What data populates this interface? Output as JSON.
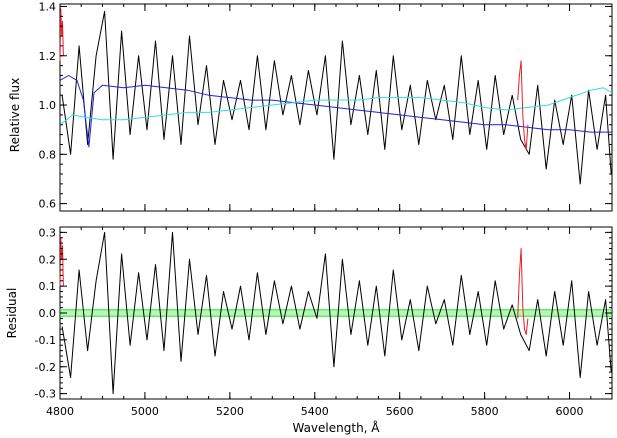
{
  "chart_data": [
    {
      "type": "line",
      "panel": "top",
      "ylabel": "Relative flux",
      "xlabel": "",
      "xlim": [
        4800,
        6100
      ],
      "ylim": [
        0.57,
        1.41
      ],
      "x_ticks": [
        "4800",
        "5000",
        "5200",
        "5400",
        "5600",
        "5800",
        "6000"
      ],
      "y_ticks": [
        "0.6",
        "0.8",
        "1.0",
        "1.2",
        "1.4"
      ],
      "grid": false,
      "legend": "none",
      "series": [
        {
          "color": "#000000",
          "x": [
            4805,
            4825,
            4845,
            4865,
            4885,
            4905,
            4925,
            4945,
            4965,
            4985,
            5005,
            5025,
            5045,
            5065,
            5085,
            5105,
            5125,
            5145,
            5165,
            5185,
            5205,
            5225,
            5245,
            5265,
            5285,
            5305,
            5325,
            5345,
            5365,
            5385,
            5405,
            5425,
            5445,
            5465,
            5485,
            5505,
            5525,
            5545,
            5565,
            5585,
            5605,
            5625,
            5645,
            5665,
            5685,
            5705,
            5725,
            5745,
            5765,
            5785,
            5805,
            5825,
            5845,
            5865,
            5885,
            5905,
            5925,
            5945,
            5965,
            5985,
            6005,
            6025,
            6045,
            6065,
            6085,
            6098
          ],
          "y": [
            1.04,
            0.8,
            1.24,
            0.84,
            1.2,
            1.38,
            0.78,
            1.3,
            0.88,
            1.2,
            0.9,
            1.26,
            0.86,
            1.2,
            0.84,
            1.28,
            0.92,
            1.16,
            0.84,
            1.1,
            0.94,
            1.1,
            0.9,
            1.2,
            0.9,
            1.18,
            0.96,
            1.12,
            0.92,
            1.14,
            0.96,
            1.2,
            0.78,
            1.26,
            0.92,
            1.12,
            0.88,
            1.14,
            0.82,
            1.2,
            0.9,
            1.08,
            0.84,
            1.1,
            0.94,
            1.08,
            0.86,
            1.2,
            0.88,
            1.1,
            0.82,
            1.12,
            0.88,
            1.04,
            0.86,
            0.8,
            1.08,
            0.74,
            1.02,
            0.84,
            1.04,
            0.68,
            1.06,
            0.82,
            1.04,
            0.72
          ]
        },
        {
          "color": "#1f22d6",
          "x": [
            4800,
            4820,
            4840,
            4855,
            4868,
            4880,
            4900,
            4950,
            5000,
            5050,
            5100,
            5150,
            5200,
            5250,
            5300,
            5350,
            5400,
            5450,
            5500,
            5550,
            5600,
            5650,
            5700,
            5750,
            5800,
            5850,
            5900,
            5950,
            6000,
            6050,
            6100
          ],
          "y": [
            1.1,
            1.12,
            1.1,
            1.02,
            0.83,
            1.05,
            1.08,
            1.07,
            1.08,
            1.07,
            1.06,
            1.04,
            1.03,
            1.02,
            1.02,
            1.01,
            1.0,
            0.99,
            0.98,
            0.97,
            0.96,
            0.95,
            0.94,
            0.93,
            0.92,
            0.92,
            0.91,
            0.9,
            0.9,
            0.89,
            0.89
          ]
        },
        {
          "color": "#33dde6",
          "x": [
            4800,
            4830,
            4860,
            4900,
            4950,
            5000,
            5050,
            5100,
            5150,
            5200,
            5250,
            5300,
            5350,
            5400,
            5450,
            5500,
            5550,
            5600,
            5650,
            5700,
            5750,
            5800,
            5850,
            5900,
            5950,
            6000,
            6050,
            6080,
            6100
          ],
          "y": [
            0.92,
            0.96,
            0.95,
            0.94,
            0.94,
            0.95,
            0.96,
            0.97,
            0.97,
            0.98,
            0.99,
            1.0,
            1.01,
            1.02,
            1.02,
            1.02,
            1.03,
            1.03,
            1.03,
            1.02,
            1.01,
            0.99,
            0.98,
            0.99,
            1.0,
            1.03,
            1.06,
            1.07,
            1.05
          ]
        },
        {
          "color": "#e8202a",
          "x": [
            4800,
            4802,
            4804,
            4806,
            4808
          ],
          "y": [
            1.18,
            1.39,
            1.28,
            1.34,
            1.2
          ]
        },
        {
          "color": "#e8202a",
          "x": [
            5878,
            5882,
            5886,
            5890,
            5894,
            5898,
            5902
          ],
          "y": [
            1.02,
            1.12,
            1.18,
            0.96,
            0.86,
            0.82,
            0.92
          ]
        }
      ]
    },
    {
      "type": "line",
      "panel": "bottom",
      "ylabel": "Residual",
      "xlabel": "Wavelength, Å",
      "xlim": [
        4800,
        6100
      ],
      "ylim": [
        -0.32,
        0.32
      ],
      "x_ticks": [
        "4800",
        "5000",
        "5200",
        "5400",
        "5600",
        "5800",
        "6000"
      ],
      "y_ticks": [
        "0.3",
        "0.2",
        "0.1",
        "0.0",
        "-0.1",
        "-0.2",
        "-0.3"
      ],
      "grid": false,
      "legend": "none",
      "bands": [
        {
          "color": "#2ee62e",
          "y": [
            0.012,
            -0.012
          ]
        }
      ],
      "series": [
        {
          "color": "#000000",
          "x": [
            4805,
            4825,
            4845,
            4865,
            4885,
            4905,
            4925,
            4945,
            4965,
            4985,
            5005,
            5025,
            5045,
            5065,
            5085,
            5105,
            5125,
            5145,
            5165,
            5185,
            5205,
            5225,
            5245,
            5265,
            5285,
            5305,
            5325,
            5345,
            5365,
            5385,
            5405,
            5425,
            5445,
            5465,
            5485,
            5505,
            5525,
            5545,
            5565,
            5585,
            5605,
            5625,
            5645,
            5665,
            5685,
            5705,
            5725,
            5745,
            5765,
            5785,
            5805,
            5825,
            5845,
            5865,
            5885,
            5905,
            5925,
            5945,
            5965,
            5985,
            6005,
            6025,
            6045,
            6065,
            6085,
            6098
          ],
          "y": [
            -0.05,
            -0.24,
            0.16,
            -0.14,
            0.12,
            0.3,
            -0.3,
            0.22,
            -0.12,
            0.15,
            -0.1,
            0.18,
            -0.14,
            0.3,
            -0.18,
            0.2,
            -0.08,
            0.14,
            -0.16,
            0.08,
            -0.06,
            0.1,
            -0.1,
            0.15,
            -0.08,
            0.12,
            -0.04,
            0.1,
            -0.06,
            0.08,
            -0.02,
            0.22,
            -0.2,
            0.2,
            -0.08,
            0.12,
            -0.12,
            0.1,
            -0.16,
            0.16,
            -0.1,
            0.05,
            -0.14,
            0.1,
            -0.04,
            0.05,
            -0.12,
            0.14,
            -0.08,
            0.08,
            -0.12,
            0.12,
            -0.06,
            0.03,
            -0.08,
            -0.14,
            0.05,
            -0.16,
            0.08,
            -0.12,
            0.12,
            -0.24,
            0.08,
            -0.12,
            0.05,
            -0.22
          ]
        },
        {
          "color": "#e8202a",
          "x": [
            4800,
            4802,
            4804,
            4806,
            4808
          ],
          "y": [
            0.1,
            0.28,
            0.2,
            0.25,
            0.1
          ]
        },
        {
          "color": "#e8202a",
          "x": [
            5878,
            5882,
            5886,
            5890,
            5894,
            5898,
            5902
          ],
          "y": [
            -0.02,
            0.14,
            0.24,
            0.02,
            -0.06,
            -0.08,
            -0.02
          ]
        }
      ]
    }
  ]
}
